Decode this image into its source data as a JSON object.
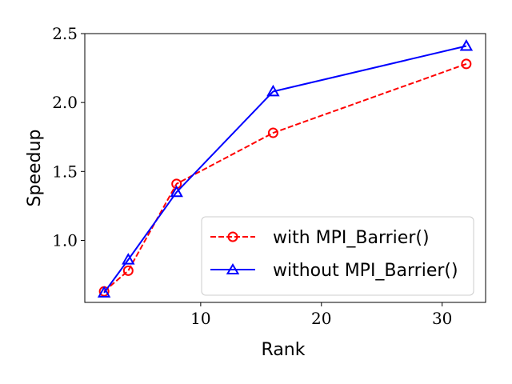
{
  "chart_data": {
    "type": "line",
    "title": "",
    "xlabel": "Rank",
    "ylabel": "Speedup",
    "xlim": [
      0.4,
      33.6
    ],
    "ylim": [
      0.55,
      2.5
    ],
    "xticks": [
      10,
      20,
      30
    ],
    "yticks": [
      1.0,
      1.5,
      2.0,
      2.5
    ],
    "xtick_labels": [
      "10",
      "20",
      "30"
    ],
    "ytick_labels": [
      "1.0",
      "1.5",
      "2.0",
      "2.5"
    ],
    "grid": false,
    "legend_position": "lower-right",
    "series": [
      {
        "name": "with MPI_Barrier()",
        "color": "#ff0000",
        "line_style": "dashed",
        "marker": "circle",
        "x": [
          2,
          4,
          8,
          16,
          32
        ],
        "y": [
          0.63,
          0.78,
          1.41,
          1.78,
          2.28
        ]
      },
      {
        "name": "without MPI_Barrier()",
        "color": "#0000ff",
        "line_style": "solid",
        "marker": "triangle",
        "x": [
          2,
          4,
          8,
          16,
          32
        ],
        "y": [
          0.62,
          0.86,
          1.35,
          2.08,
          2.41
        ]
      }
    ]
  }
}
